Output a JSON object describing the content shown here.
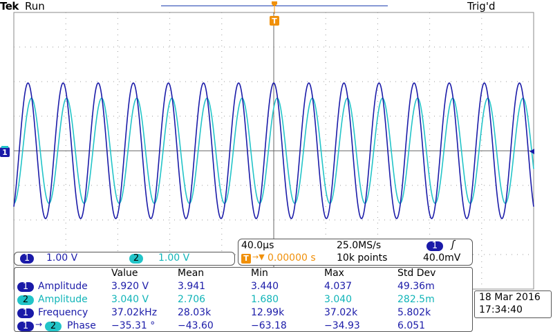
{
  "header": {
    "brand": "Tek",
    "run_status": "Run",
    "trigger_status": "Trig'd"
  },
  "trigger_marker": "T",
  "ground_marker": "1",
  "channels": [
    {
      "id": "1",
      "scale": "1.00 V",
      "color": "#1a1aa8"
    },
    {
      "id": "2",
      "scale": "1.00 V",
      "color": "#22c4c8"
    }
  ],
  "timebase": {
    "horizontal_scale": "40.0µs",
    "sample_rate": "25.0MS/s",
    "trigger_source": "1",
    "trigger_slope_symbol": "ʃ",
    "trigger_position_marker": "T",
    "trigger_position_arrow": "→▼",
    "trigger_position": "0.00000 s",
    "record_length": "10k points",
    "trigger_level": "40.0mV"
  },
  "measurements": {
    "headers": [
      "Value",
      "Mean",
      "Min",
      "Max",
      "Std Dev"
    ],
    "rows": [
      {
        "source": "1",
        "source_b": "",
        "name": "Amplitude",
        "values": [
          "3.920 V",
          "3.941",
          "3.440",
          "4.037",
          "49.36m"
        ]
      },
      {
        "source": "2",
        "source_b": "",
        "name": "Amplitude",
        "values": [
          "3.040 V",
          "2.706",
          "1.680",
          "3.040",
          "282.5m"
        ]
      },
      {
        "source": "1",
        "source_b": "",
        "name": "Frequency",
        "values": [
          "37.02kHz",
          "28.03k",
          "12.99k",
          "37.02k",
          "5.802k"
        ]
      },
      {
        "source": "1",
        "source_b": "2",
        "arrow": "→",
        "name": "Phase",
        "values": [
          "−35.31 °",
          "−43.60",
          "−63.18",
          "−34.93",
          "6.051"
        ]
      }
    ]
  },
  "datetime": {
    "date": "18 Mar  2016",
    "time": "17:34:40"
  },
  "waveform": {
    "ch1_amplitude_v": 1.96,
    "ch2_amplitude_v": 1.52,
    "frequency_khz": 37.02,
    "phase_deg": -35.31,
    "volts_per_div": 1.0,
    "time_per_div_us": 40.0
  }
}
